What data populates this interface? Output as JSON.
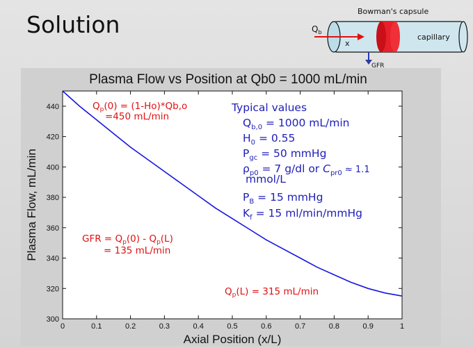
{
  "slide": {
    "title": "Solution"
  },
  "diagram": {
    "capsule_label": "Bowman's capsule",
    "flow_symbol": "Q",
    "flow_subscript": "b",
    "position_symbol": "x",
    "capillary_label": "capillary",
    "gfr_label": "GFR"
  },
  "chart_data": {
    "type": "line",
    "title": "Plasma Flow vs Position at Qb0 = 1000 mL/min",
    "xlabel": "Axial Position (x/L)",
    "ylabel": "Plasma Flow, mL/min",
    "xlim": [
      0,
      1
    ],
    "ylim": [
      300,
      450
    ],
    "x_ticks": [
      "0",
      "0.1",
      "0.2",
      "0.3",
      "0.4",
      "0.5",
      "0.6",
      "0.7",
      "0.8",
      "0.9",
      "1"
    ],
    "y_ticks": [
      "300",
      "320",
      "340",
      "360",
      "380",
      "400",
      "420",
      "440"
    ],
    "series": [
      {
        "color": "#1515e0",
        "x": [
          0,
          0.05,
          0.1,
          0.15,
          0.2,
          0.25,
          0.3,
          0.35,
          0.4,
          0.45,
          0.5,
          0.55,
          0.6,
          0.65,
          0.7,
          0.75,
          0.8,
          0.85,
          0.9,
          0.95,
          1.0
        ],
        "y": [
          450,
          440,
          431,
          422,
          413,
          405,
          397,
          389,
          381,
          373,
          366,
          359,
          352,
          346,
          340,
          334,
          329,
          324,
          320,
          317,
          315
        ]
      }
    ]
  },
  "annotations": {
    "qp0_line1": {
      "main": "Q",
      "sub": "p",
      "rest": "(0) = (1-Ho)*Qb,o"
    },
    "qp0_line2": "=450 mL/min",
    "gfr_line1": {
      "a": "GFR = Q",
      "sub1": "p",
      "b": "(0) - Q",
      "sub2": "p",
      "c": "(L)"
    },
    "gfr_line2": "= 135 mL/min",
    "qpl": {
      "main": "Q",
      "sub": "p",
      "rest": "(L) = 315 mL/min"
    },
    "typical": {
      "heading": "Typical values",
      "qb0": {
        "main": "Q",
        "sub": "b,0",
        "rest": " = 1000 mL/min"
      },
      "h0": {
        "main": "H",
        "sub": "0",
        "rest": " = 0.55"
      },
      "pgc": {
        "main": "P",
        "sub": "gc",
        "rest": " = 50 mmHg"
      },
      "rho": {
        "main": "ρ",
        "sub": "p0",
        "rest": " = 7 g/dl or ",
        "c": "C",
        "csub": "pr0",
        "crest": " ≈ 1.1"
      },
      "rho_cont": "mmol/L",
      "pb": {
        "main": "P",
        "sub": "B",
        "rest": " = 15 mmHg"
      },
      "kf": {
        "main": "K",
        "sub": "f",
        "rest": " = 15 ml/min/mmHg"
      }
    }
  },
  "colors": {
    "curve": "#1515e0",
    "red_text": "#e01010",
    "blue_text": "#2020b8",
    "capsule_fill": "#cfe6ef",
    "band_red": "#e8202a"
  }
}
